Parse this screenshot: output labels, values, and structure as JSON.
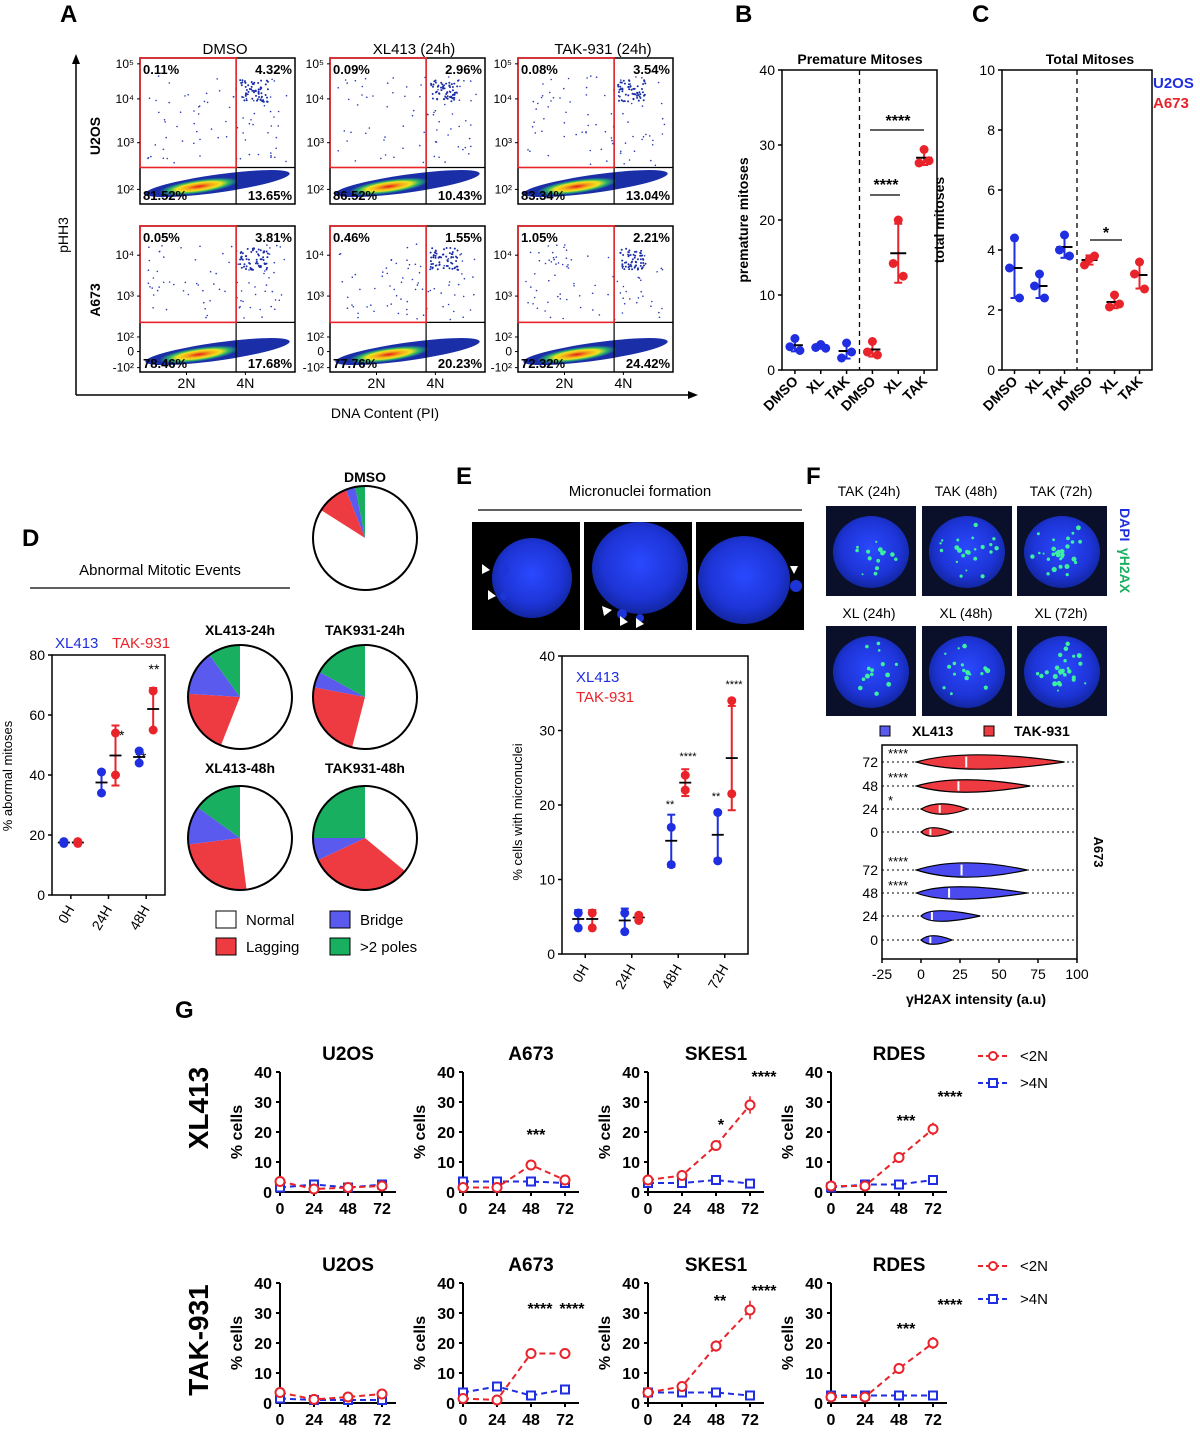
{
  "panel_letters": [
    "A",
    "B",
    "C",
    "D",
    "E",
    "F",
    "G"
  ],
  "panelA": {
    "yaxis_label": "pHH3",
    "xaxis_label": "DNA Content (PI)",
    "col_titles": [
      "DMSO",
      "XL413 (24h)",
      "TAK-931 (24h)"
    ],
    "row_labels": [
      "U2OS",
      "A673"
    ],
    "y_ticks_top": [
      "10⁵",
      "10⁴",
      "10³",
      "10²"
    ],
    "y_ticks_bottom": [
      "10⁴",
      "10³",
      "10²",
      "0",
      "-10²"
    ],
    "x_ticks": [
      "2N",
      "4N"
    ],
    "quadrants": [
      [
        {
          "ul": "0.11%",
          "ur": "4.32%",
          "ll": "81.52%",
          "lr": "13.65%"
        },
        {
          "ul": "0.09%",
          "ur": "2.96%",
          "ll": "86.52%",
          "lr": "10.43%"
        },
        {
          "ul": "0.08%",
          "ur": "3.54%",
          "ll": "83.34%",
          "lr": "13.04%"
        }
      ],
      [
        {
          "ul": "0.05%",
          "ur": "3.81%",
          "ll": "78.46%",
          "lr": "17.68%"
        },
        {
          "ul": "0.46%",
          "ur": "1.55%",
          "ll": "77.76%",
          "lr": "20.23%"
        },
        {
          "ul": "1.05%",
          "ur": "2.21%",
          "ll": "72.32%",
          "lr": "24.42%"
        }
      ]
    ]
  },
  "panelB_extra": {
    "stars_top": "****",
    "stars_mid": "****"
  },
  "panelC_legend": {
    "u2os": "U2OS",
    "a673": "A673"
  },
  "panelC_extra": {
    "star": "*"
  },
  "panelD": {
    "title": "Abnormal Mitotic Events",
    "legend_top": [
      "XL413",
      "TAK-931"
    ],
    "pie_titles": [
      "DMSO",
      "XL413-24h",
      "TAK931-24h",
      "XL413-48h",
      "TAK931-48h"
    ],
    "legend": [
      "Normal",
      "Bridge",
      "Lagging",
      ">2 poles"
    ],
    "stars": [
      "*",
      "**",
      "**",
      "**"
    ]
  },
  "panelE": {
    "title": "Micronuclei formation",
    "legend": [
      "XL413",
      "TAK-931"
    ],
    "stars": [
      "**",
      "****",
      "**",
      "****"
    ]
  },
  "panelF": {
    "image_titles_top": [
      "TAK (24h)",
      "TAK (48h)",
      "TAK (72h)"
    ],
    "image_titles_bottom": [
      "XL (24h)",
      "XL (48h)",
      "XL (72h)"
    ],
    "stain_labels": [
      "DAPI",
      "γH2AX"
    ],
    "legend": [
      "XL413",
      "TAK-931"
    ],
    "side_label": "A673",
    "stars": [
      "****",
      "****",
      "*",
      "****",
      "****"
    ]
  },
  "panelG": {
    "row_labels": [
      "XL413",
      "TAK-931"
    ],
    "legend": [
      "<2N",
      ">4N"
    ],
    "stars_row1": [
      "***",
      "*",
      "****",
      "***",
      "****"
    ],
    "stars_row2": [
      "****",
      "****",
      "**",
      "****",
      "***",
      "****"
    ]
  },
  "colors": {
    "blue": "#1f2ee0",
    "red": "#e8232a",
    "green": "#18b060",
    "black": "#000000",
    "grid": "#333333"
  },
  "chart_data": [
    {
      "id": "B",
      "type": "scatter",
      "title": "Premature Mitoses",
      "ylabel": "premature mitoses",
      "ylim": [
        0,
        40
      ],
      "yticks": [
        0,
        10,
        20,
        30,
        40
      ],
      "categories": [
        "DMSO",
        "XL",
        "TAK",
        "DMSO",
        "XL",
        "TAK"
      ],
      "series": [
        {
          "color": "blue",
          "groups": [
            [
              4.2,
              3.1,
              2.6
            ],
            [
              3.4,
              3.0,
              2.9
            ],
            [
              3.6,
              1.6,
              2.4
            ]
          ]
        },
        {
          "color": "red",
          "groups": [
            [
              3.8,
              2.4,
              2.0
            ],
            [
              20.0,
              14.2,
              12.5
            ],
            [
              29.4,
              27.6,
              27.9
            ]
          ]
        }
      ]
    },
    {
      "id": "C",
      "type": "scatter",
      "title": "Total Mitoses",
      "ylabel": "total  mitoses",
      "ylim": [
        0,
        10
      ],
      "yticks": [
        0,
        2,
        4,
        6,
        8,
        10
      ],
      "categories": [
        "DMSO",
        "XL",
        "TAK",
        "DMSO",
        "XL",
        "TAK"
      ],
      "series": [
        {
          "color": "blue",
          "groups": [
            [
              4.4,
              3.4,
              2.4
            ],
            [
              3.2,
              2.8,
              2.4
            ],
            [
              4.5,
              4.0,
              3.8
            ]
          ]
        },
        {
          "color": "red",
          "groups": [
            [
              3.7,
              3.5,
              3.8
            ],
            [
              2.5,
              2.1,
              2.2
            ],
            [
              3.6,
              3.2,
              2.7
            ]
          ]
        }
      ]
    },
    {
      "id": "D",
      "type": "scatter",
      "ylabel": "% abormal mitoses",
      "ylim": [
        0,
        80
      ],
      "yticks": [
        0,
        20,
        40,
        60,
        80
      ],
      "categories": [
        "0H",
        "24H",
        "48H"
      ],
      "series": [
        {
          "name": "XL413",
          "color": "blue",
          "mean": [
            17.5,
            37.5,
            46.0
          ],
          "sd": [
            0.5,
            4.0,
            2.5
          ],
          "points": [
            [
              17.2,
              17.8
            ],
            [
              34.0,
              41.0
            ],
            [
              44.0,
              48.0
            ]
          ]
        },
        {
          "name": "TAK-931",
          "color": "red",
          "mean": [
            17.5,
            46.5,
            62.0
          ],
          "sd": [
            0.5,
            10.0,
            7.0
          ],
          "points": [
            [
              17.2,
              17.8
            ],
            [
              40.0,
              54.0
            ],
            [
              55.0,
              68.0
            ]
          ]
        }
      ]
    },
    {
      "id": "D-pies",
      "type": "pie",
      "labels": [
        "Normal",
        "Bridge",
        "Lagging",
        ">2 poles"
      ],
      "pies": [
        {
          "name": "DMSO",
          "values": [
            84,
            3,
            10,
            3
          ]
        },
        {
          "name": "XL413-24h",
          "values": [
            56,
            14,
            20,
            10
          ]
        },
        {
          "name": "TAK931-24h",
          "values": [
            54,
            5,
            24,
            17
          ]
        },
        {
          "name": "XL413-48h",
          "values": [
            48,
            12,
            25,
            15
          ]
        },
        {
          "name": "TAK931-48h",
          "values": [
            36,
            7,
            32,
            25
          ]
        }
      ]
    },
    {
      "id": "E",
      "type": "scatter",
      "ylabel": "% cells with micronuclei",
      "ylim": [
        0,
        40
      ],
      "yticks": [
        0,
        10,
        20,
        30,
        40
      ],
      "categories": [
        "0H",
        "24H",
        "48H",
        "72H"
      ],
      "series": [
        {
          "name": "XL413",
          "color": "blue",
          "mean": [
            4.7,
            4.5,
            15.2,
            16.0
          ],
          "sd": [
            1.2,
            1.6,
            3.5,
            3.2
          ],
          "points": [
            [
              5.5,
              3.5
            ],
            [
              5.5,
              3.0
            ],
            [
              17.0,
              12.0
            ],
            [
              19.0,
              12.5
            ]
          ]
        },
        {
          "name": "TAK-931",
          "color": "red",
          "mean": [
            4.7,
            4.9,
            23.0,
            26.3
          ],
          "sd": [
            1.2,
            0.5,
            1.8,
            7.0
          ],
          "points": [
            [
              5.5,
              3.5
            ],
            [
              5.2,
              4.5
            ],
            [
              24.0,
              22.0
            ],
            [
              34.0,
              21.5
            ]
          ]
        }
      ]
    },
    {
      "id": "F",
      "type": "violin",
      "xlabel": "γH2AX intensity (a.u)",
      "xlim": [
        -25,
        100
      ],
      "xticks": [
        -25,
        0,
        25,
        50,
        75,
        100
      ],
      "rows": [
        "72",
        "48",
        "24",
        "0",
        "72",
        "48",
        "24",
        "0"
      ],
      "series": [
        {
          "name": "TAK-931",
          "color": "red",
          "rows": [
            "72",
            "48",
            "24",
            "0"
          ],
          "median": [
            29,
            24,
            12,
            6
          ],
          "min": [
            -3,
            -3,
            0,
            0
          ],
          "max": [
            92,
            70,
            30,
            20
          ]
        },
        {
          "name": "XL413",
          "color": "blue",
          "rows": [
            "72",
            "48",
            "24",
            "0"
          ],
          "median": [
            26,
            18,
            7,
            6
          ],
          "min": [
            -3,
            -3,
            0,
            0
          ],
          "max": [
            68,
            68,
            38,
            20
          ]
        }
      ]
    },
    {
      "id": "G",
      "type": "line",
      "ylabel": "% cells",
      "ylim": [
        0,
        40
      ],
      "yticks": [
        0,
        10,
        20,
        30,
        40
      ],
      "x": [
        0,
        24,
        48,
        72
      ],
      "panels": [
        {
          "title": "U2OS",
          "row": "XL413",
          "lt2N": [
            3.5,
            1.0,
            1.5,
            2.0
          ],
          "gt4N": [
            1.5,
            2.5,
            1.5,
            2.5
          ]
        },
        {
          "title": "A673",
          "row": "XL413",
          "lt2N": [
            1.5,
            1.5,
            9.0,
            4.0
          ],
          "gt4N": [
            3.5,
            3.5,
            3.5,
            3.0
          ]
        },
        {
          "title": "SKES1",
          "row": "XL413",
          "lt2N": [
            4.0,
            5.5,
            15.5,
            29.0
          ],
          "gt4N": [
            3.0,
            3.0,
            4.0,
            2.8
          ]
        },
        {
          "title": "RDES",
          "row": "XL413",
          "lt2N": [
            2.0,
            2.0,
            11.5,
            21.0
          ],
          "gt4N": [
            1.5,
            2.5,
            2.5,
            4.0
          ]
        },
        {
          "title": "U2OS",
          "row": "TAK-931",
          "lt2N": [
            3.5,
            1.2,
            2.0,
            3.0
          ],
          "gt4N": [
            1.5,
            1.0,
            1.0,
            1.0
          ]
        },
        {
          "title": "A673",
          "row": "TAK-931",
          "lt2N": [
            1.5,
            1.0,
            16.5,
            16.5
          ],
          "gt4N": [
            3.5,
            5.5,
            2.5,
            4.5
          ]
        },
        {
          "title": "SKES1",
          "row": "TAK-931",
          "lt2N": [
            3.5,
            5.5,
            19.0,
            31.0
          ],
          "gt4N": [
            3.5,
            3.5,
            3.5,
            2.5
          ]
        },
        {
          "title": "RDES",
          "row": "TAK-931",
          "lt2N": [
            2.0,
            2.0,
            11.5,
            20.0
          ],
          "gt4N": [
            2.5,
            2.5,
            2.5,
            2.5
          ]
        }
      ]
    }
  ]
}
